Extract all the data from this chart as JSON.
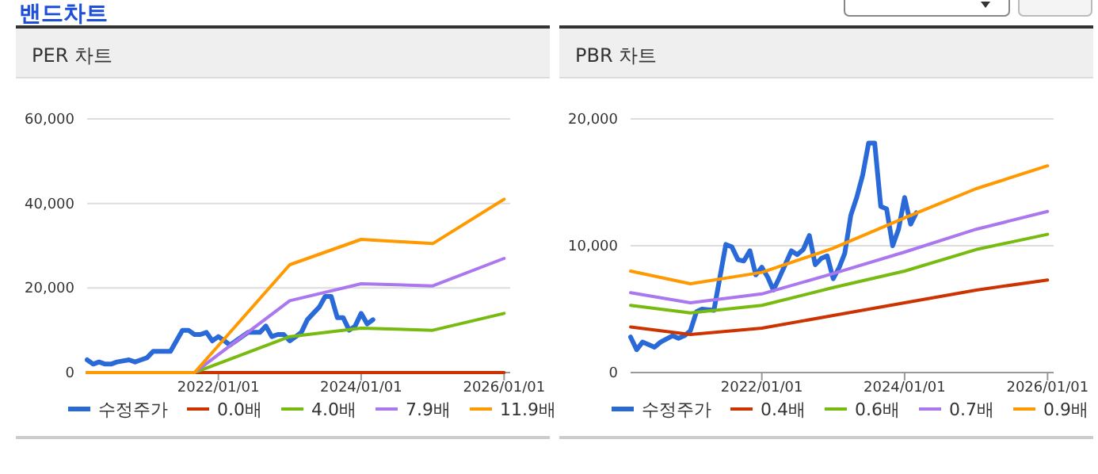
{
  "chart_data": [
    {
      "type": "line",
      "title": "PER 차트",
      "annotations": [
        "밴드차트"
      ],
      "xlim": [
        "2020-03",
        "2026-02"
      ],
      "xticks": [
        {
          "value": "2022-01-01",
          "label": "2022/01/01"
        },
        {
          "value": "2024-01-01",
          "label": "2024/01/01"
        },
        {
          "value": "2026-01-01",
          "label": "2026/01/01"
        }
      ],
      "ylim": [
        0,
        60000
      ],
      "yticks": [
        {
          "value": 0,
          "label": "0"
        },
        {
          "value": 20000,
          "label": "20,000"
        },
        {
          "value": 40000,
          "label": "40,000"
        },
        {
          "value": 60000,
          "label": "60,000"
        }
      ],
      "grid": "y",
      "legend": "bottom",
      "marker": "none",
      "line_style": "solid",
      "series": [
        {
          "name": "수정주가",
          "color": "#2a6ad8",
          "x": [
            "2020-03",
            "2020-04",
            "2020-05",
            "2020-06",
            "2020-07",
            "2020-08",
            "2020-10",
            "2020-11",
            "2020-12",
            "2021-01",
            "2021-02",
            "2021-03",
            "2021-05",
            "2021-07",
            "2021-08",
            "2021-09",
            "2021-10",
            "2021-11",
            "2021-12",
            "2022-01",
            "2022-02",
            "2022-03",
            "2022-04",
            "2022-06",
            "2022-07",
            "2022-08",
            "2022-09",
            "2022-10",
            "2022-11",
            "2022-12",
            "2023-01",
            "2023-02",
            "2023-03",
            "2023-04",
            "2023-05",
            "2023-06",
            "2023-07",
            "2023-08",
            "2023-09",
            "2023-10",
            "2023-11",
            "2023-12",
            "2024-01",
            "2024-02",
            "2024-03"
          ],
          "values": [
            3000,
            2000,
            2500,
            2000,
            2000,
            2500,
            3000,
            2500,
            3000,
            3500,
            5000,
            5000,
            5000,
            10000,
            10000,
            9000,
            9000,
            9500,
            7500,
            8500,
            7500,
            6500,
            7500,
            9500,
            9500,
            9500,
            11000,
            8500,
            9000,
            9000,
            7500,
            8500,
            9500,
            12500,
            14000,
            15500,
            18000,
            18000,
            13000,
            13000,
            10000,
            11000,
            14000,
            11500,
            12500
          ]
        },
        {
          "name": "0.0배",
          "color": "#cc3300",
          "x": [
            "2020-03",
            "2021-09",
            "2023-01",
            "2024-01",
            "2025-01",
            "2026-01"
          ],
          "values": [
            0,
            0,
            0,
            0,
            0,
            0
          ]
        },
        {
          "name": "4.0배",
          "color": "#77bb11",
          "x": [
            "2020-03",
            "2021-09",
            "2023-01",
            "2024-01",
            "2025-01",
            "2026-01"
          ],
          "values": [
            0,
            0,
            8500,
            10500,
            10000,
            14000
          ]
        },
        {
          "name": "7.9배",
          "color": "#aa77ee",
          "x": [
            "2020-03",
            "2021-09",
            "2023-01",
            "2024-01",
            "2025-01",
            "2026-01"
          ],
          "values": [
            0,
            0,
            17000,
            21000,
            20500,
            27000
          ]
        },
        {
          "name": "11.9배",
          "color": "#ff9900",
          "x": [
            "2020-03",
            "2021-09",
            "2023-01",
            "2024-01",
            "2025-01",
            "2026-01"
          ],
          "values": [
            0,
            0,
            25500,
            31500,
            30500,
            41000
          ]
        }
      ]
    },
    {
      "type": "line",
      "title": "PBR 차트",
      "xlim": [
        "2020-03",
        "2026-02"
      ],
      "xticks": [
        {
          "value": "2022-01-01",
          "label": "2022/01/01"
        },
        {
          "value": "2024-01-01",
          "label": "2024/01/01"
        },
        {
          "value": "2026-01-01",
          "label": "2026/01/01"
        }
      ],
      "ylim": [
        0,
        20000
      ],
      "yticks": [
        {
          "value": 0,
          "label": "0"
        },
        {
          "value": 10000,
          "label": "10,000"
        },
        {
          "value": 20000,
          "label": "20,000"
        }
      ],
      "grid": "y",
      "legend": "bottom",
      "marker": "none",
      "line_style": "solid",
      "series": [
        {
          "name": "수정주가",
          "color": "#2a6ad8",
          "x": [
            "2020-03",
            "2020-04",
            "2020-05",
            "2020-06",
            "2020-07",
            "2020-08",
            "2020-10",
            "2020-11",
            "2020-12",
            "2021-01",
            "2021-02",
            "2021-03",
            "2021-05",
            "2021-07",
            "2021-08",
            "2021-09",
            "2021-10",
            "2021-11",
            "2021-12",
            "2022-01",
            "2022-02",
            "2022-03",
            "2022-04",
            "2022-06",
            "2022-07",
            "2022-08",
            "2022-09",
            "2022-10",
            "2022-11",
            "2022-12",
            "2023-01",
            "2023-02",
            "2023-03",
            "2023-04",
            "2023-05",
            "2023-06",
            "2023-07",
            "2023-08",
            "2023-09",
            "2023-10",
            "2023-11",
            "2023-12",
            "2024-01",
            "2024-02",
            "2024-03"
          ],
          "values": [
            2800,
            1800,
            2400,
            2200,
            2000,
            2400,
            2900,
            2700,
            2900,
            3300,
            4800,
            5000,
            4900,
            10100,
            9900,
            8900,
            8800,
            9600,
            7700,
            8300,
            7500,
            6500,
            7500,
            9600,
            9300,
            9700,
            10800,
            8500,
            9000,
            9200,
            7400,
            8300,
            9400,
            12400,
            13800,
            15600,
            18100,
            18100,
            13100,
            12900,
            10000,
            11300,
            13800,
            11700,
            12600
          ]
        },
        {
          "name": "0.4배",
          "color": "#cc3300",
          "x": [
            "2020-03",
            "2021-01",
            "2022-01",
            "2023-01",
            "2024-01",
            "2025-01",
            "2026-01"
          ],
          "values": [
            3600,
            3000,
            3500,
            4500,
            5500,
            6500,
            7300
          ]
        },
        {
          "name": "0.6배",
          "color": "#77bb11",
          "x": [
            "2020-03",
            "2021-01",
            "2022-01",
            "2023-01",
            "2024-01",
            "2025-01",
            "2026-01"
          ],
          "values": [
            5300,
            4700,
            5300,
            6700,
            8000,
            9700,
            10900
          ]
        },
        {
          "name": "0.7배",
          "color": "#aa77ee",
          "x": [
            "2020-03",
            "2021-01",
            "2022-01",
            "2023-01",
            "2024-01",
            "2025-01",
            "2026-01"
          ],
          "values": [
            6300,
            5500,
            6200,
            7800,
            9500,
            11300,
            12700
          ]
        },
        {
          "name": "0.9배",
          "color": "#ff9900",
          "x": [
            "2020-03",
            "2021-01",
            "2022-01",
            "2023-01",
            "2024-01",
            "2025-01",
            "2026-01"
          ],
          "values": [
            8000,
            7000,
            7900,
            9800,
            12200,
            14500,
            16300
          ]
        }
      ]
    }
  ]
}
